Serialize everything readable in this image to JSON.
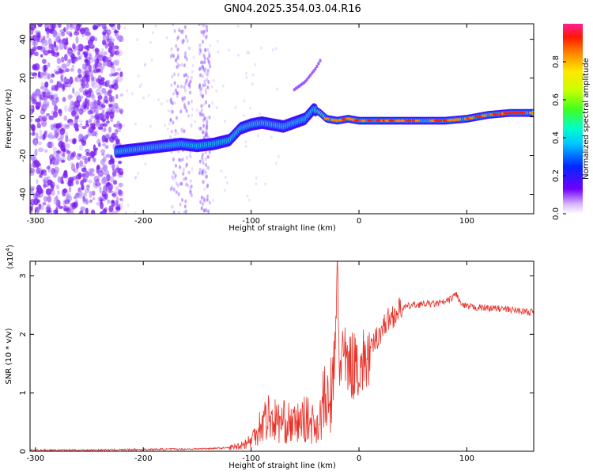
{
  "title": "GN04.2025.354.03.04.R16",
  "chart_data": [
    {
      "type": "heatmap",
      "panel": "spectrogram",
      "xlabel": "Height of straight line (km)",
      "ylabel": "Frequency (Hz)",
      "xlim": [
        -305,
        162
      ],
      "ylim": [
        -50,
        48
      ],
      "xticks": [
        -300,
        -200,
        -100,
        0,
        100
      ],
      "yticks": [
        -40,
        -20,
        0,
        20,
        40
      ],
      "colorbar": {
        "label": "Normalized spectral amplitude",
        "ticks": [
          "0.0",
          "0.2",
          "0.4",
          "0.6",
          "0.8"
        ],
        "tick_values": [
          0.0,
          0.2,
          0.4,
          0.6,
          0.8
        ],
        "range": [
          0,
          1
        ]
      },
      "ridge": {
        "x": [
          -225,
          -210,
          -195,
          -180,
          -165,
          -150,
          -135,
          -120,
          -110,
          -100,
          -90,
          -80,
          -70,
          -60,
          -50,
          -42,
          -36,
          -30,
          -20,
          -10,
          0,
          20,
          40,
          60,
          80,
          100,
          120,
          140,
          162
        ],
        "y": [
          -18,
          -17,
          -16,
          -15,
          -14,
          -15,
          -14,
          -12,
          -6,
          -4,
          -3,
          -4,
          -5,
          -3,
          -1,
          4,
          2,
          -1,
          -2,
          -1,
          -2,
          -2,
          -2,
          -2,
          -2,
          -1,
          1,
          2,
          2
        ]
      },
      "harmonic": {
        "x": [
          -60,
          -50,
          -40,
          -35
        ],
        "y": [
          14,
          18,
          25,
          30
        ]
      }
    },
    {
      "type": "line",
      "panel": "snr",
      "xlabel": "Height of straight line (km)",
      "ylabel": "SNR (10 * v/v)",
      "scale_label": "(x10",
      "scale_exponent": "4",
      "scale_close": ")",
      "xlim": [
        -305,
        162
      ],
      "ylim": [
        0,
        3.25
      ],
      "xticks": [
        -300,
        -200,
        -100,
        0,
        100
      ],
      "yticks": [
        0,
        1,
        2,
        3
      ],
      "series": [
        {
          "name": "SNR",
          "color": "#e8322a",
          "x": [
            -305,
            -250,
            -200,
            -150,
            -120,
            -110,
            -100,
            -95,
            -90,
            -85,
            -80,
            -75,
            -70,
            -65,
            -60,
            -55,
            -50,
            -45,
            -40,
            -36,
            -32,
            -28,
            -25,
            -22,
            -20,
            -18,
            -16,
            -14,
            -12,
            -10,
            -8,
            -5,
            -2,
            0,
            5,
            10,
            15,
            20,
            25,
            30,
            40,
            50,
            60,
            70,
            80,
            85,
            90,
            95,
            100,
            110,
            120,
            130,
            140,
            150,
            162
          ],
          "y": [
            0.02,
            0.02,
            0.03,
            0.04,
            0.06,
            0.1,
            0.18,
            0.35,
            0.5,
            0.6,
            0.55,
            0.5,
            0.5,
            0.48,
            0.45,
            0.5,
            0.55,
            0.5,
            0.45,
            0.55,
            0.9,
            0.7,
            1.1,
            1.6,
            3.2,
            1.3,
            1.8,
            1.55,
            1.5,
            1.4,
            1.5,
            1.45,
            1.6,
            1.4,
            1.55,
            1.65,
            1.9,
            2.05,
            2.2,
            2.3,
            2.45,
            2.5,
            2.52,
            2.52,
            2.55,
            2.6,
            2.7,
            2.5,
            2.47,
            2.46,
            2.45,
            2.44,
            2.42,
            2.4,
            2.37
          ]
        }
      ]
    }
  ]
}
